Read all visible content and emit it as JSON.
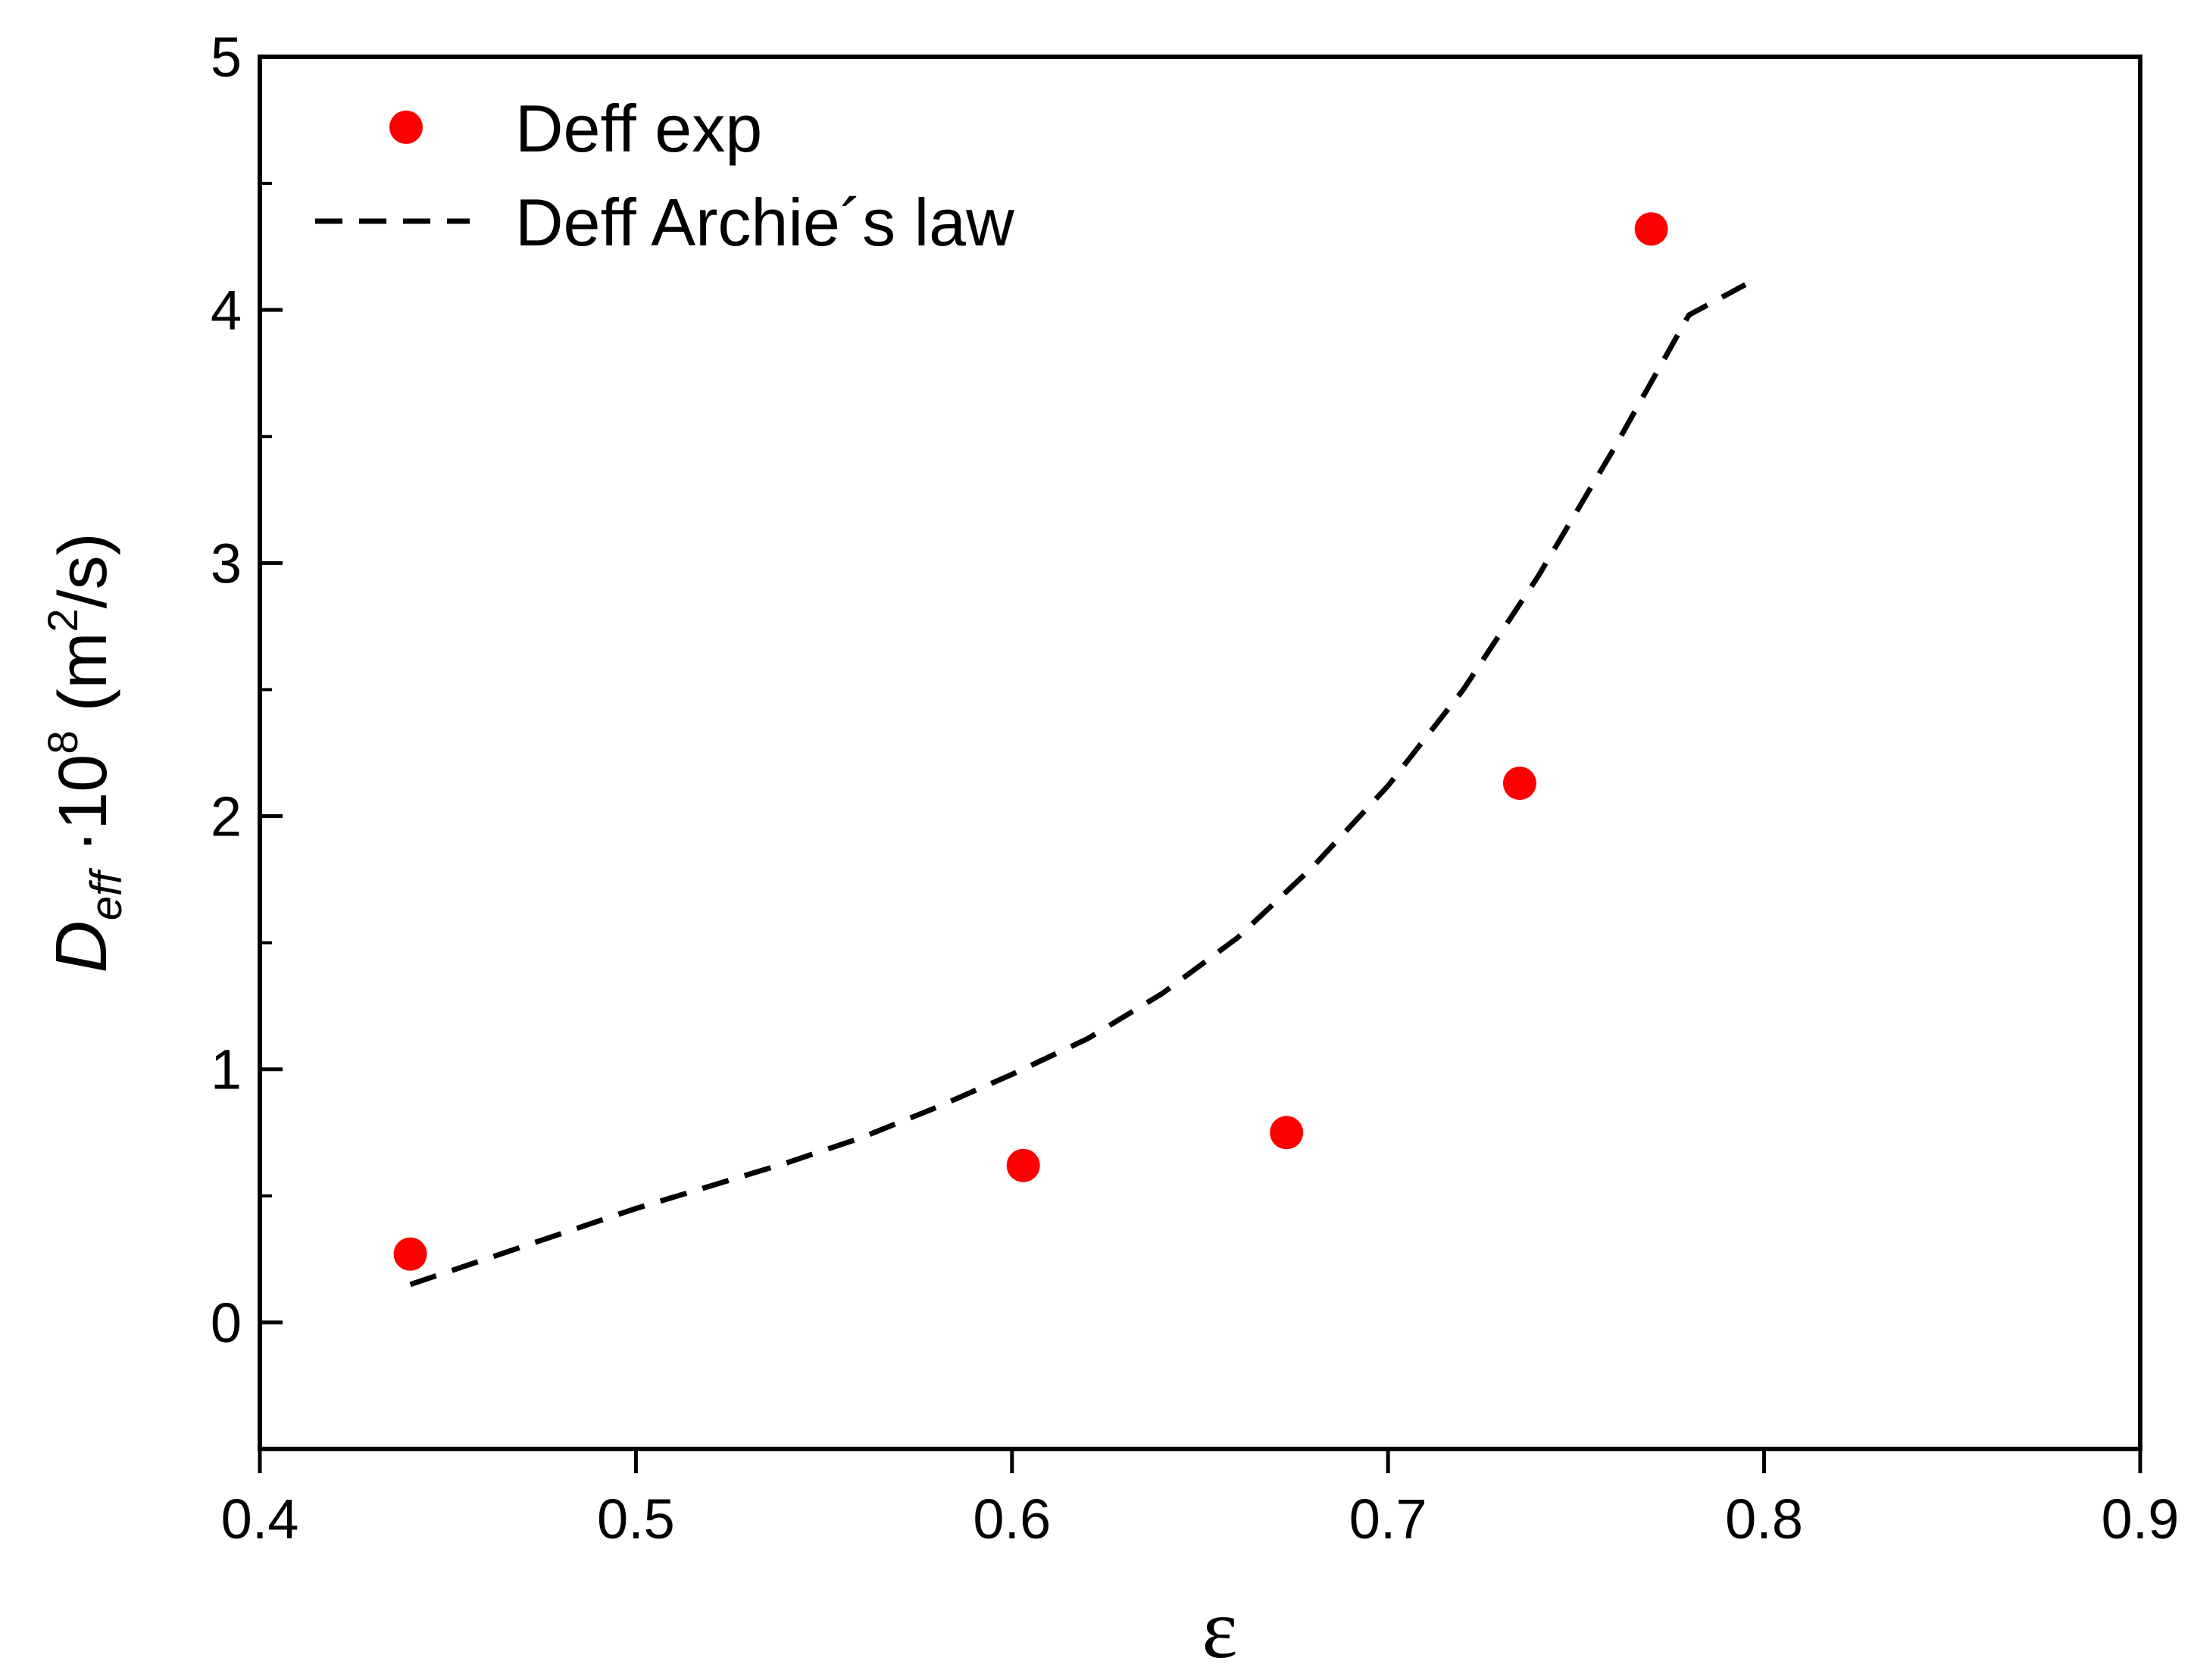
{
  "chart_data": {
    "type": "scatter",
    "xlabel": "ε",
    "ylabel": {
      "symbol": "D",
      "subscript": "eff",
      "factor": " ·10",
      "exponent": "8",
      "unit_open": " (m",
      "unit_exp": "2",
      "unit_close": "/s)"
    },
    "xlim": [
      0.4,
      0.9
    ],
    "ylim": [
      -0.5,
      5
    ],
    "xticks": [
      "0.4",
      "0.5",
      "0.6",
      "0.7",
      "0.8",
      "0.9"
    ],
    "yticks": [
      "0",
      "1",
      "2",
      "3",
      "4",
      "5"
    ],
    "legend_position": "top-left",
    "grid": false,
    "series": [
      {
        "name": "Deff exp",
        "kind": "scatter",
        "color": "#ff0000",
        "points": [
          {
            "x": 0.44,
            "y": 0.27
          },
          {
            "x": 0.603,
            "y": 0.62
          },
          {
            "x": 0.673,
            "y": 0.75
          },
          {
            "x": 0.735,
            "y": 2.13
          },
          {
            "x": 0.77,
            "y": 4.32
          }
        ]
      },
      {
        "name": "Deff Archie´s law",
        "kind": "line",
        "style": "dashed",
        "color": "#000000",
        "x": [
          0.44,
          0.46,
          0.48,
          0.5,
          0.52,
          0.54,
          0.56,
          0.58,
          0.6,
          0.62,
          0.64,
          0.66,
          0.68,
          0.7,
          0.72,
          0.74,
          0.76,
          0.78,
          0.795
        ],
        "y": [
          0.15,
          0.25,
          0.35,
          0.45,
          0.54,
          0.63,
          0.73,
          0.85,
          0.98,
          1.12,
          1.3,
          1.52,
          1.8,
          2.12,
          2.5,
          2.95,
          3.45,
          3.98,
          4.1
        ]
      }
    ]
  }
}
